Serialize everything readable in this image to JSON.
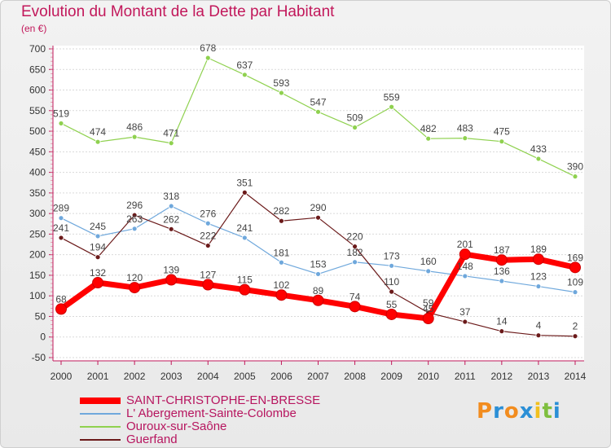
{
  "header": {
    "title": "Evolution du Montant de la Dette par Habitant",
    "unit": "(en €)"
  },
  "logo": {
    "text": "Proxiti"
  },
  "chart_data": {
    "type": "line",
    "title": "Evolution du Montant de la Dette par Habitant",
    "ylabel": "(en €)",
    "xlabel": "",
    "ylim": [
      -50,
      700
    ],
    "y_ticks": [
      -50,
      0,
      50,
      100,
      150,
      200,
      250,
      300,
      350,
      400,
      450,
      500,
      550,
      600,
      650,
      700
    ],
    "x": [
      "2000",
      "2001",
      "2002",
      "2003",
      "2004",
      "2005",
      "2006",
      "2007",
      "2008",
      "2009",
      "2010",
      "2011",
      "2012",
      "2013",
      "2014"
    ],
    "grid": "horizontal",
    "legend_position": "bottom-left",
    "series": [
      {
        "name": "SAINT-CHRISTOPHE-EN-BRESSE",
        "color": "#ff0000",
        "values": [
          68,
          132,
          120,
          139,
          127,
          115,
          102,
          89,
          74,
          55,
          45,
          201,
          187,
          189,
          169
        ]
      },
      {
        "name": "L' Abergement-Sainte-Colombe",
        "color": "#6fa8dc",
        "values": [
          289,
          245,
          263,
          318,
          276,
          241,
          181,
          153,
          182,
          173,
          160,
          148,
          136,
          123,
          109
        ]
      },
      {
        "name": "Ouroux-sur-Saône",
        "color": "#8fd14f",
        "values": [
          519,
          474,
          486,
          471,
          678,
          637,
          593,
          547,
          509,
          559,
          482,
          483,
          475,
          433,
          390
        ]
      },
      {
        "name": "Guerfand",
        "color": "#6b1a1a",
        "values": [
          241,
          194,
          296,
          262,
          222,
          351,
          282,
          290,
          220,
          110,
          59,
          37,
          14,
          4,
          2
        ]
      }
    ]
  }
}
